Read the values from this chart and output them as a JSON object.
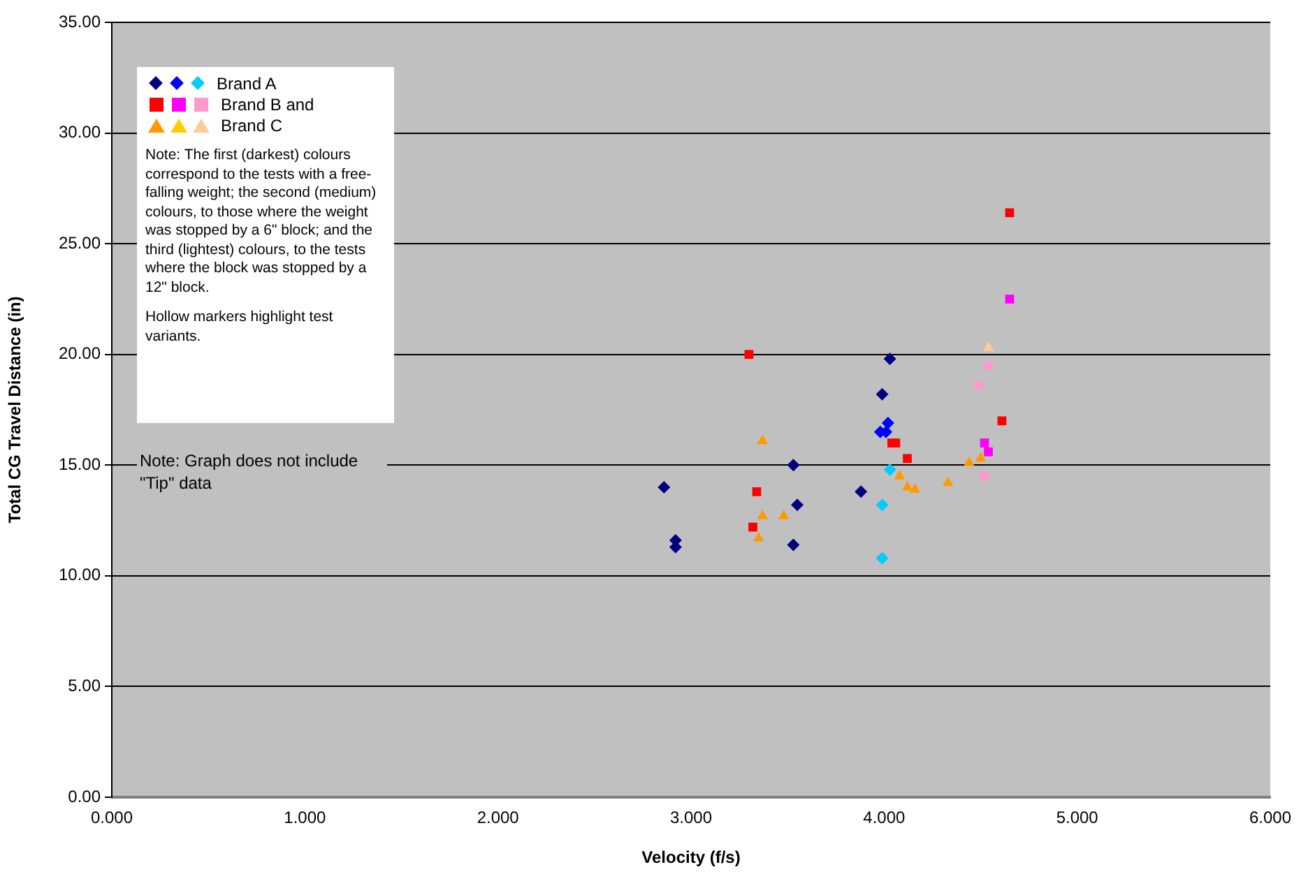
{
  "chart_data": {
    "type": "scatter",
    "xlabel": "Velocity (f/s)",
    "ylabel": "Total CG Travel Distance (in)",
    "xlim": [
      0,
      6
    ],
    "xticks": [
      {
        "value": 0,
        "label": "0.000"
      },
      {
        "value": 1,
        "label": "1.000"
      },
      {
        "value": 2,
        "label": "2.000"
      },
      {
        "value": 3,
        "label": "3.000"
      },
      {
        "value": 4,
        "label": "4.000"
      },
      {
        "value": 5,
        "label": "5.000"
      },
      {
        "value": 6,
        "label": "6.000"
      }
    ],
    "ylim": [
      0,
      35
    ],
    "yticks": [
      {
        "value": 0,
        "label": "0.00"
      },
      {
        "value": 5,
        "label": "5.00"
      },
      {
        "value": 10,
        "label": "10.00"
      },
      {
        "value": 15,
        "label": "15.00"
      },
      {
        "value": 20,
        "label": "20.00"
      },
      {
        "value": 25,
        "label": "25.00"
      },
      {
        "value": 30,
        "label": "30.00"
      },
      {
        "value": 35,
        "label": "35.00"
      }
    ],
    "grid": "y",
    "legend": "top left",
    "series": [
      {
        "color": "#000080",
        "marker": "diamond",
        "x": [
          2.86,
          2.92,
          2.92,
          3.53,
          3.55,
          3.53,
          3.88,
          4.03,
          3.99
        ],
        "values": [
          14.0,
          11.3,
          11.6,
          15.0,
          13.2,
          11.4,
          13.8,
          19.8,
          18.2
        ]
      },
      {
        "color": "#0000ff",
        "marker": "diamond",
        "x": [
          4.02,
          3.98,
          4.01
        ],
        "values": [
          16.9,
          16.5,
          16.5
        ]
      },
      {
        "name": "Brand A",
        "color": "#00ccff",
        "marker": "diamond",
        "x": [
          4.03,
          3.99,
          3.99
        ],
        "values": [
          14.8,
          13.2,
          10.8
        ]
      },
      {
        "color": "#ff0000",
        "marker": "square",
        "x": [
          3.3,
          3.34,
          3.32,
          4.65,
          4.61,
          4.04,
          4.06,
          4.12
        ],
        "values": [
          20.0,
          13.8,
          12.2,
          26.4,
          17.0,
          16.0,
          16.0,
          15.3
        ]
      },
      {
        "color": "#ff00ff",
        "marker": "square",
        "x": [
          4.65,
          4.52,
          4.54
        ],
        "values": [
          22.5,
          16.0,
          15.6
        ]
      },
      {
        "name": "Brand B and",
        "color": "#ff99cc",
        "marker": "square",
        "x": [
          4.54,
          4.49,
          4.52
        ],
        "values": [
          19.5,
          18.6,
          14.5
        ]
      },
      {
        "color": "#ff9900",
        "marker": "triangle",
        "x": [
          3.37,
          3.37,
          3.48,
          3.35,
          4.08,
          4.12,
          4.16,
          4.33,
          4.44,
          4.5
        ],
        "values": [
          16.1,
          12.7,
          12.7,
          11.7,
          14.5,
          14.0,
          13.9,
          14.2,
          15.1,
          15.3
        ]
      },
      {
        "color": "#ffcc00",
        "marker": "triangle"
      },
      {
        "name": "Brand C",
        "color": "#ffcc99",
        "marker": "triangle",
        "x": [
          4.54
        ],
        "values": [
          20.3
        ]
      }
    ],
    "annotations": [
      "Note: The first (darkest) colours correspond to the tests with a free-falling weight; the second (medium) colours, to those where the weight was stopped by a 6\" block; and the third (lightest) colours, to the tests where the block was stopped by a 12\" block.",
      "Hollow markers highlight test variants.",
      "Note: Graph does not include \"Tip\" data"
    ]
  }
}
